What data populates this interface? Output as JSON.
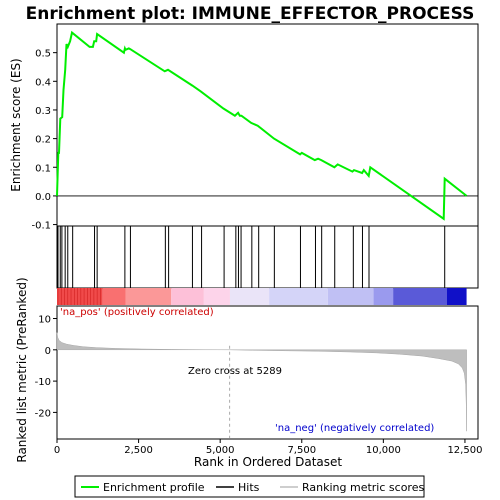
{
  "chart_data": {
    "type": "line",
    "title": "Enrichment plot: IMMUNE_EFFECTOR_PROCESS",
    "xlabel": "Rank in Ordered Dataset",
    "es_ylabel": "Enrichment score (ES)",
    "metric_ylabel": "Ranked list metric (PreRanked)",
    "xlim": [
      0,
      12900
    ],
    "es_ylim": [
      -0.105,
      0.6
    ],
    "metric_ylim": [
      -28.5,
      14
    ],
    "x_ticks": [
      0,
      2500,
      5000,
      7500,
      10000,
      12500
    ],
    "x_tick_labels": [
      "0",
      "2,500",
      "5,000",
      "7,500",
      "10,000",
      "12,500"
    ],
    "es_ticks": [
      -0.1,
      0.0,
      0.1,
      0.2,
      0.3,
      0.4,
      0.5
    ],
    "es_tick_labels": [
      "-0.1",
      "0.0",
      "0.1",
      "0.2",
      "0.3",
      "0.4",
      "0.5"
    ],
    "metric_ticks": [
      10,
      0,
      -10,
      -20
    ],
    "metric_tick_labels": [
      "10",
      "0",
      "-10",
      "-20"
    ],
    "enrichment_profile": {
      "name": "Enrichment profile",
      "color": "#00ee00",
      "x": [
        0,
        40,
        60,
        100,
        160,
        200,
        250,
        290,
        330,
        400,
        460,
        1000,
        1100,
        1140,
        1200,
        1230,
        2050,
        2080,
        2100,
        2200,
        2250,
        3300,
        3400,
        4150,
        4400,
        5100,
        5450,
        5550,
        5600,
        5650,
        5950,
        6150,
        6650,
        7450,
        7500,
        7900,
        8000,
        8100,
        8500,
        8600,
        9050,
        9100,
        9350,
        9400,
        9550,
        9600,
        11850,
        11880,
        12550
      ],
      "y": [
        0.0,
        0.15,
        0.15,
        0.27,
        0.275,
        0.37,
        0.44,
        0.53,
        0.52,
        0.54,
        0.57,
        0.52,
        0.52,
        0.54,
        0.54,
        0.565,
        0.5,
        0.515,
        0.51,
        0.515,
        0.512,
        0.435,
        0.44,
        0.385,
        0.365,
        0.305,
        0.28,
        0.29,
        0.28,
        0.28,
        0.255,
        0.245,
        0.2,
        0.145,
        0.15,
        0.125,
        0.13,
        0.125,
        0.1,
        0.11,
        0.085,
        0.09,
        0.08,
        0.09,
        0.07,
        0.1,
        -0.08,
        0.06,
        0.0
      ]
    },
    "hits": [
      30,
      100,
      150,
      250,
      330,
      480,
      1150,
      1230,
      2080,
      2250,
      3320,
      3420,
      4150,
      4430,
      5120,
      5480,
      5560,
      5640,
      5970,
      6180,
      6660,
      7460,
      7920,
      8110,
      8510,
      9080,
      9360,
      9560,
      11880
    ],
    "ranking_metric": {
      "name": "Ranking metric scores",
      "color": "#bebebe",
      "x": [
        0,
        20,
        60,
        150,
        300,
        500,
        800,
        1200,
        1800,
        2600,
        3500,
        4500,
        5289,
        6000,
        7000,
        8000,
        9000,
        9800,
        10500,
        11200,
        11700,
        12100,
        12300,
        12420,
        12480,
        12520,
        12540,
        12550
      ],
      "y": [
        5.5,
        4.0,
        3.0,
        2.3,
        1.8,
        1.4,
        1.0,
        0.7,
        0.45,
        0.25,
        0.12,
        0.05,
        0.0,
        -0.15,
        -0.3,
        -0.45,
        -0.7,
        -1.0,
        -1.4,
        -2.0,
        -2.8,
        -3.6,
        -4.5,
        -5.8,
        -7.5,
        -11.0,
        -18.0,
        -26.0
      ]
    },
    "color_bar": {
      "pos_color": "#ff0000",
      "neg_color": "#0000ff",
      "segments": [
        {
          "from": 0,
          "to": 1400,
          "color": "#f04a4a"
        },
        {
          "from": 1400,
          "to": 2100,
          "color": "#f97070"
        },
        {
          "from": 2100,
          "to": 3500,
          "color": "#fb9898"
        },
        {
          "from": 3500,
          "to": 4500,
          "color": "#fdc0d8"
        },
        {
          "from": 4500,
          "to": 5300,
          "color": "#fdd4ea"
        },
        {
          "from": 5300,
          "to": 6500,
          "color": "#eae4f8"
        },
        {
          "from": 6500,
          "to": 8300,
          "color": "#d4d4f8"
        },
        {
          "from": 8300,
          "to": 9700,
          "color": "#c0c0f4"
        },
        {
          "from": 9700,
          "to": 10300,
          "color": "#9a9aee"
        },
        {
          "from": 10300,
          "to": 11950,
          "color": "#5a5ad8"
        },
        {
          "from": 11950,
          "to": 12550,
          "color": "#1010c8"
        }
      ]
    },
    "zero_cross": 5289,
    "annotations": {
      "pos": "'na_pos' (positively correlated)",
      "neg": "'na_neg' (negatively correlated)",
      "zero": "Zero cross at 5289"
    },
    "legend": [
      {
        "label": "Enrichment profile",
        "color": "#00ee00"
      },
      {
        "label": "Hits",
        "color": "#000000"
      },
      {
        "label": "Ranking metric scores",
        "color": "#bebebe"
      }
    ],
    "legend_placement": "bottom"
  }
}
